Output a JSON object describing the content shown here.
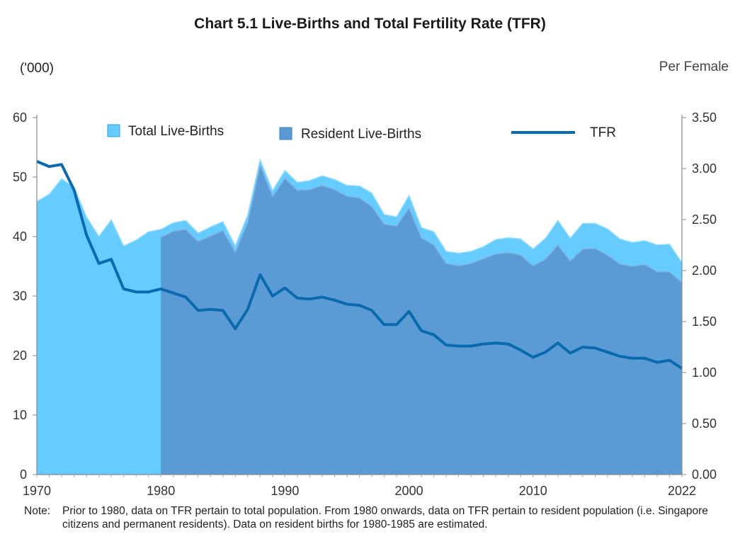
{
  "title": "Chart 5.1 Live-Births and Total Fertility Rate (TFR)",
  "left_unit": "('000)",
  "right_unit": "Per Female",
  "note_label": "Note:",
  "note_text": "Prior to 1980, data on TFR pertain to total population. From 1980 onwards, data on TFR pertain to resident population (i.e. Singapore citizens and permanent residents). Data on resident births for 1980-1985 are estimated.",
  "colors": {
    "total": "#66ccff",
    "resident": "#5b9bd5",
    "tfr": "#0b6aae",
    "axis": "#888888"
  },
  "chart_data": {
    "type": "area",
    "title": "Chart 5.1 Live-Births and Total Fertility Rate (TFR)",
    "x_tick_labels": [
      "1970",
      "1980",
      "1990",
      "2000",
      "2010",
      "2022"
    ],
    "y_left_ticks": [
      "0",
      "10",
      "20",
      "30",
      "40",
      "50",
      "60"
    ],
    "y_right_ticks": [
      "0.00",
      "0.50",
      "1.00",
      "1.50",
      "2.00",
      "2.50",
      "3.00",
      "3.50"
    ],
    "xlim": [
      1970,
      2022
    ],
    "ylim_left": [
      0,
      60
    ],
    "ylim_right": [
      0,
      3.5
    ],
    "legend_position": "top",
    "series": [
      {
        "name": "Total Live-Births",
        "type": "area",
        "axis": "left",
        "color": "#66ccff",
        "x": [
          1970,
          1971,
          1972,
          1973,
          1974,
          1975,
          1976,
          1977,
          1978,
          1979,
          1980,
          1981,
          1982,
          1983,
          1984,
          1985,
          1986,
          1987,
          1988,
          1989,
          1990,
          1991,
          1992,
          1993,
          1994,
          1995,
          1996,
          1997,
          1998,
          1999,
          2000,
          2001,
          2002,
          2003,
          2004,
          2005,
          2006,
          2007,
          2008,
          2009,
          2010,
          2011,
          2012,
          2013,
          2014,
          2015,
          2016,
          2017,
          2018,
          2019,
          2020,
          2021,
          2022
        ],
        "values": [
          45.9,
          47.1,
          49.7,
          48.3,
          43.3,
          40.0,
          42.8,
          38.4,
          39.4,
          40.8,
          41.2,
          42.3,
          42.7,
          40.6,
          41.6,
          42.5,
          38.4,
          43.6,
          52.9,
          47.7,
          51.1,
          49.1,
          49.4,
          50.2,
          49.6,
          48.6,
          48.5,
          47.3,
          43.7,
          43.3,
          46.9,
          41.5,
          40.8,
          37.5,
          37.2,
          37.5,
          38.3,
          39.5,
          39.8,
          39.6,
          37.9,
          39.7,
          42.7,
          39.7,
          42.2,
          42.2,
          41.3,
          39.6,
          39.0,
          39.3,
          38.6,
          38.7,
          35.6
        ]
      },
      {
        "name": "Resident Live-Births",
        "type": "area",
        "axis": "left",
        "color": "#5b9bd5",
        "x": [
          1980,
          1981,
          1982,
          1983,
          1984,
          1985,
          1986,
          1987,
          1988,
          1989,
          1990,
          1991,
          1992,
          1993,
          1994,
          1995,
          1996,
          1997,
          1998,
          1999,
          2000,
          2001,
          2002,
          2003,
          2004,
          2005,
          2006,
          2007,
          2008,
          2009,
          2010,
          2011,
          2012,
          2013,
          2014,
          2015,
          2016,
          2017,
          2018,
          2019,
          2020,
          2021,
          2022
        ],
        "values": [
          39.9,
          40.9,
          41.2,
          39.2,
          40.1,
          41.0,
          37.4,
          42.4,
          52.0,
          46.8,
          49.8,
          47.8,
          47.9,
          48.6,
          47.9,
          46.8,
          46.5,
          45.1,
          42.1,
          41.8,
          44.8,
          39.8,
          38.6,
          35.5,
          35.1,
          35.5,
          36.3,
          37.1,
          37.3,
          36.9,
          35.1,
          36.2,
          38.6,
          35.9,
          37.9,
          38.0,
          36.9,
          35.4,
          35.0,
          35.3,
          34.1,
          34.1,
          32.3
        ]
      },
      {
        "name": "TFR",
        "type": "line",
        "axis": "right",
        "color": "#0b6aae",
        "x": [
          1970,
          1971,
          1972,
          1973,
          1974,
          1975,
          1976,
          1977,
          1978,
          1979,
          1980,
          1981,
          1982,
          1983,
          1984,
          1985,
          1986,
          1987,
          1988,
          1989,
          1990,
          1991,
          1992,
          1993,
          1994,
          1995,
          1996,
          1997,
          1998,
          1999,
          2000,
          2001,
          2002,
          2003,
          2004,
          2005,
          2006,
          2007,
          2008,
          2009,
          2010,
          2011,
          2012,
          2013,
          2014,
          2015,
          2016,
          2017,
          2018,
          2019,
          2020,
          2021,
          2022
        ],
        "values": [
          3.07,
          3.02,
          3.04,
          2.79,
          2.35,
          2.07,
          2.11,
          1.82,
          1.79,
          1.79,
          1.82,
          1.78,
          1.74,
          1.61,
          1.62,
          1.61,
          1.43,
          1.62,
          1.96,
          1.75,
          1.83,
          1.73,
          1.72,
          1.74,
          1.71,
          1.67,
          1.66,
          1.61,
          1.47,
          1.47,
          1.6,
          1.41,
          1.37,
          1.27,
          1.26,
          1.26,
          1.28,
          1.29,
          1.28,
          1.22,
          1.15,
          1.2,
          1.29,
          1.19,
          1.25,
          1.24,
          1.2,
          1.16,
          1.14,
          1.14,
          1.1,
          1.12,
          1.04
        ]
      }
    ]
  }
}
